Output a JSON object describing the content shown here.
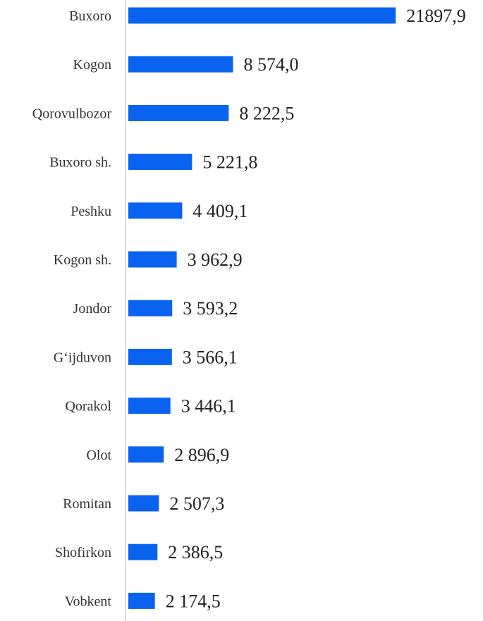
{
  "colors": {
    "bar": "#0a63f0",
    "axis": "#d9d9d9",
    "category_text": "#333333",
    "value_text": "#222222"
  },
  "chart_data": {
    "type": "bar",
    "orientation": "horizontal",
    "title": "",
    "xlabel": "",
    "ylabel": "",
    "grid": false,
    "legend": "none",
    "categories": [
      "Buxoro",
      "Kogon",
      "Qorovulbozor",
      "Buxoro sh.",
      "Peshku",
      "Kogon sh.",
      "Jondor",
      "G‘ijduvon",
      "Qorakol",
      "Olot",
      "Romitan",
      "Shofirkon",
      "Vobkent"
    ],
    "values": [
      21897.9,
      8574.0,
      8222.5,
      5221.8,
      4409.1,
      3962.9,
      3593.2,
      3566.1,
      3446.1,
      2896.9,
      2507.3,
      2386.5,
      2174.5
    ],
    "value_labels": [
      "21897,9",
      "8 574,0",
      "8 222,5",
      "5 221,8",
      "4 409,1",
      "3 962,9",
      "3 593,2",
      "3 566,1",
      "3 446,1",
      "2 896,9",
      "2 507,3",
      "2 386,5",
      "2 174,5"
    ],
    "xlim": [
      0,
      22000
    ]
  }
}
